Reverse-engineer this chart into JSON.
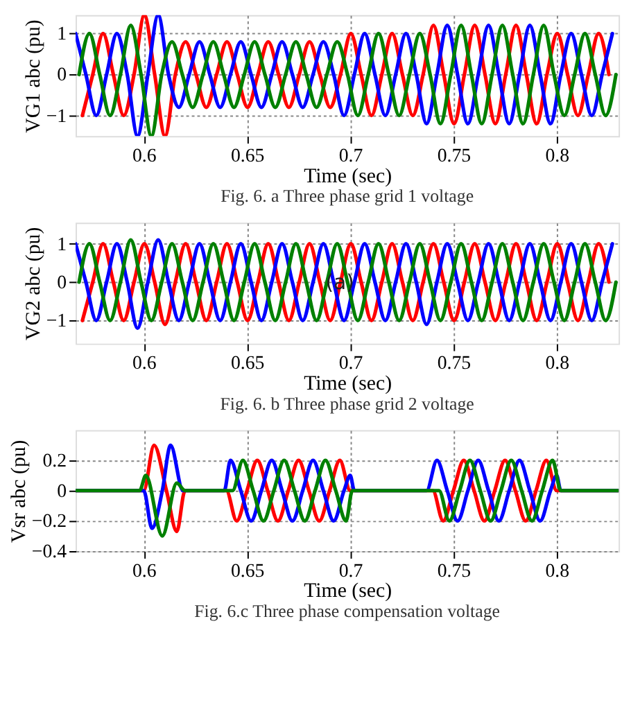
{
  "chart_data": [
    {
      "type": "line",
      "xlabel": "Time (sec)",
      "ylabel": "VG1 abc (pu)",
      "annotations": [
        "Fig. 6. a Three phase grid 1 voltage"
      ],
      "xlim": [
        0.567,
        0.83
      ],
      "ylim": [
        -1.5,
        1.45
      ],
      "xticks": [
        0.6,
        0.65,
        0.7,
        0.75,
        0.8
      ],
      "yticks": [
        -1,
        0,
        1
      ],
      "grid": true,
      "line_style": "solid",
      "series": [
        {
          "color": "#ff0000",
          "x": [
            0.5703,
            0.5753,
            0.5803,
            0.5853,
            0.5903,
            0.5953,
            0.6003,
            0.6053,
            0.6103,
            0.6153,
            0.6203,
            0.6253,
            0.6303,
            0.6353,
            0.6403,
            0.6453,
            0.6503,
            0.6553,
            0.6603,
            0.6653,
            0.6703,
            0.6753,
            0.6803,
            0.6853,
            0.6903,
            0.6953,
            0.7003,
            0.7053,
            0.7103,
            0.7153,
            0.7203,
            0.7253,
            0.7303,
            0.7353,
            0.7403,
            0.7453,
            0.7503,
            0.7553,
            0.7603,
            0.7653,
            0.7703,
            0.7753,
            0.7803,
            0.7853,
            0.7903,
            0.7953,
            0.8003,
            0.8053,
            0.8103,
            0.8153,
            0.8203,
            0.8253
          ],
          "values": [
            -1,
            0,
            1,
            0,
            -1,
            0,
            1.45,
            0,
            -1.5,
            0,
            0.8,
            0,
            -0.8,
            0,
            0.8,
            0,
            -0.8,
            0,
            0.8,
            0,
            -0.8,
            0,
            0.8,
            0,
            -0.8,
            0,
            1,
            0,
            -1,
            0,
            1,
            0,
            -1,
            0,
            1.2,
            0,
            -1.2,
            0,
            1.2,
            0,
            -1.2,
            0,
            1.2,
            0,
            -1.2,
            0,
            1,
            0,
            -1,
            0,
            1,
            0
          ]
        },
        {
          "color": "#0000ff",
          "x": [
            0.567,
            0.572,
            0.577,
            0.582,
            0.587,
            0.592,
            0.597,
            0.602,
            0.607,
            0.612,
            0.617,
            0.622,
            0.627,
            0.632,
            0.637,
            0.642,
            0.647,
            0.652,
            0.657,
            0.662,
            0.667,
            0.672,
            0.677,
            0.682,
            0.687,
            0.692,
            0.697,
            0.702,
            0.707,
            0.712,
            0.717,
            0.722,
            0.727,
            0.732,
            0.737,
            0.742,
            0.747,
            0.752,
            0.757,
            0.762,
            0.767,
            0.772,
            0.777,
            0.782,
            0.787,
            0.792,
            0.797,
            0.802,
            0.807,
            0.812,
            0.817,
            0.822,
            0.827
          ],
          "values": [
            1,
            0,
            -1,
            0,
            1,
            0,
            -1.5,
            0,
            1.45,
            0,
            -0.8,
            0,
            0.8,
            0,
            -0.8,
            0,
            0.8,
            0,
            -0.8,
            0,
            0.8,
            0,
            -0.8,
            0,
            0.8,
            0,
            -1,
            0,
            1,
            0,
            -1,
            0,
            1,
            0,
            -1.2,
            0,
            1.2,
            0,
            -1.2,
            0,
            1.2,
            0,
            -1.2,
            0,
            1.2,
            0,
            -1.2,
            0,
            1,
            0,
            -1,
            0,
            1
          ]
        },
        {
          "color": "#008000",
          "x": [
            0.5687,
            0.5737,
            0.5787,
            0.5837,
            0.5887,
            0.5937,
            0.5987,
            0.6037,
            0.6087,
            0.6137,
            0.6187,
            0.6237,
            0.6287,
            0.6337,
            0.6387,
            0.6437,
            0.6487,
            0.6537,
            0.6587,
            0.6637,
            0.6687,
            0.6737,
            0.6787,
            0.6837,
            0.6887,
            0.6937,
            0.6987,
            0.7037,
            0.7087,
            0.7137,
            0.7187,
            0.7237,
            0.7287,
            0.7337,
            0.7387,
            0.7437,
            0.7487,
            0.7537,
            0.7587,
            0.7637,
            0.7687,
            0.7737,
            0.7787,
            0.7837,
            0.7887,
            0.7937,
            0.7987,
            0.8037,
            0.8087,
            0.8137,
            0.8187,
            0.8237,
            0.8287
          ],
          "values": [
            0,
            1,
            0,
            -1,
            0,
            1.2,
            0,
            -1.5,
            0,
            0.8,
            0,
            -0.8,
            0,
            0.8,
            0,
            -0.8,
            0,
            0.8,
            0,
            -0.8,
            0,
            0.8,
            0,
            -0.8,
            0,
            0.8,
            0,
            -1,
            0,
            1,
            0,
            -1,
            0,
            1,
            0,
            -1.2,
            0,
            1.2,
            0,
            -1.2,
            0,
            1.2,
            0,
            -1.2,
            0,
            1.2,
            0,
            -1,
            0,
            1,
            0,
            -1,
            0
          ]
        }
      ]
    },
    {
      "type": "line",
      "xlabel": "Time (sec)",
      "ylabel": "VG2 abc (pu)",
      "annotations": [
        {
          "text": "(a)",
          "x": 0.695,
          "y": 0
        },
        "Fig. 6. b Three phase grid 2 voltage"
      ],
      "xlim": [
        0.567,
        0.83
      ],
      "ylim": [
        -1.6,
        1.55
      ],
      "xticks": [
        0.6,
        0.65,
        0.7,
        0.75,
        0.8
      ],
      "yticks": [
        -1,
        0,
        1
      ],
      "grid": true,
      "line_style": "solid",
      "series": [
        {
          "color": "#ff0000",
          "x": [
            0.5703,
            0.5753,
            0.5803,
            0.5853,
            0.5903,
            0.5953,
            0.6003,
            0.6053,
            0.6103,
            0.6153,
            0.6203,
            0.6253,
            0.6303,
            0.6353,
            0.6403,
            0.6453,
            0.6503,
            0.6553,
            0.6603,
            0.6653,
            0.6703,
            0.6753,
            0.6803,
            0.6853,
            0.6903,
            0.6953,
            0.7003,
            0.7053,
            0.7103,
            0.7153,
            0.7203,
            0.7253,
            0.7303,
            0.7353,
            0.7403,
            0.7453,
            0.7503,
            0.7553,
            0.7603,
            0.7653,
            0.7703,
            0.7753,
            0.7803,
            0.7853,
            0.7903,
            0.7953,
            0.8003,
            0.8053,
            0.8103,
            0.8153,
            0.8203,
            0.8253
          ],
          "values": [
            -1,
            0,
            1,
            0,
            -1,
            0,
            1,
            0,
            -1.1,
            0,
            1,
            0,
            -1,
            0,
            1,
            0,
            -1,
            0,
            1,
            0,
            -1,
            0,
            1,
            0,
            -1,
            0,
            1,
            0,
            -1,
            0,
            1,
            0,
            -1,
            0,
            1,
            0,
            -1,
            0,
            1,
            0,
            -1,
            0,
            1,
            0,
            -1,
            0,
            1,
            0,
            -1,
            0,
            1,
            0
          ]
        },
        {
          "color": "#0000ff",
          "x": [
            0.567,
            0.572,
            0.577,
            0.582,
            0.587,
            0.592,
            0.597,
            0.602,
            0.607,
            0.612,
            0.617,
            0.622,
            0.627,
            0.632,
            0.637,
            0.642,
            0.647,
            0.652,
            0.657,
            0.662,
            0.667,
            0.672,
            0.677,
            0.682,
            0.687,
            0.692,
            0.697,
            0.702,
            0.707,
            0.712,
            0.717,
            0.722,
            0.727,
            0.732,
            0.737,
            0.742,
            0.747,
            0.752,
            0.757,
            0.762,
            0.767,
            0.772,
            0.777,
            0.782,
            0.787,
            0.792,
            0.797,
            0.802,
            0.807,
            0.812,
            0.817,
            0.822,
            0.827
          ],
          "values": [
            1,
            0,
            -1,
            0,
            1,
            0,
            -1.2,
            0,
            1.1,
            0,
            -1,
            0,
            1,
            0,
            -1,
            0,
            1,
            0,
            -1,
            0,
            1,
            0,
            -1,
            0,
            1,
            0,
            -1,
            0,
            1,
            0,
            -1,
            0,
            1,
            0,
            -1.1,
            0,
            1,
            0,
            -1,
            0,
            1,
            0,
            -1,
            0,
            1,
            0,
            -1,
            0,
            1,
            0,
            -1,
            0,
            1
          ]
        },
        {
          "color": "#008000",
          "x": [
            0.5687,
            0.5737,
            0.5787,
            0.5837,
            0.5887,
            0.5937,
            0.5987,
            0.6037,
            0.6087,
            0.6137,
            0.6187,
            0.6237,
            0.6287,
            0.6337,
            0.6387,
            0.6437,
            0.6487,
            0.6537,
            0.6587,
            0.6637,
            0.6687,
            0.6737,
            0.6787,
            0.6837,
            0.6887,
            0.6937,
            0.6987,
            0.7037,
            0.7087,
            0.7137,
            0.7187,
            0.7237,
            0.7287,
            0.7337,
            0.7387,
            0.7437,
            0.7487,
            0.7537,
            0.7587,
            0.7637,
            0.7687,
            0.7737,
            0.7787,
            0.7837,
            0.7887,
            0.7937,
            0.7987,
            0.8037,
            0.8087,
            0.8137,
            0.8187,
            0.8237,
            0.8287
          ],
          "values": [
            0,
            1,
            0,
            -1,
            0,
            1.1,
            0,
            -1,
            0,
            1,
            0,
            -1,
            0,
            1,
            0,
            -1,
            0,
            1,
            0,
            -1,
            0,
            1,
            0,
            -1,
            0,
            1,
            0,
            -1,
            0,
            1,
            0,
            -1,
            0,
            1,
            0,
            -1,
            0,
            1,
            0,
            -1,
            0,
            1,
            0,
            -1,
            0,
            1,
            0,
            -1,
            0,
            1,
            0,
            -1,
            0
          ]
        }
      ]
    },
    {
      "type": "line",
      "xlabel": "Time (sec)",
      "ylabel": "Vsr abc (pu)",
      "annotations": [
        "Fig. 6.c Three phase compensation voltage"
      ],
      "xlim": [
        0.567,
        0.83
      ],
      "ylim": [
        -0.4,
        0.4
      ],
      "xticks": [
        0.6,
        0.65,
        0.7,
        0.75,
        0.8
      ],
      "yticks": [
        -0.4,
        -0.2,
        0,
        0.2
      ],
      "grid": true,
      "line_style": "solid",
      "series": [
        {
          "color": "#ff0000",
          "x": [
            0.567,
            0.6,
            0.605,
            0.611,
            0.616,
            0.62,
            0.64,
            0.645,
            0.65,
            0.655,
            0.66,
            0.665,
            0.67,
            0.675,
            0.68,
            0.685,
            0.69,
            0.695,
            0.7,
            0.74,
            0.745,
            0.75,
            0.755,
            0.76,
            0.765,
            0.77,
            0.775,
            0.78,
            0.785,
            0.79,
            0.795,
            0.8,
            0.83
          ],
          "values": [
            0,
            0,
            0.3,
            0,
            -0.27,
            0,
            0,
            -0.2,
            0,
            0.2,
            0,
            -0.2,
            0,
            0.2,
            0,
            -0.2,
            0,
            0.2,
            0,
            0,
            -0.2,
            0,
            0.2,
            0,
            -0.2,
            0,
            0.2,
            0,
            -0.2,
            0,
            0.2,
            0,
            0
          ]
        },
        {
          "color": "#0000ff",
          "x": [
            0.567,
            0.6,
            0.604,
            0.609,
            0.613,
            0.619,
            0.639,
            0.642,
            0.647,
            0.652,
            0.657,
            0.662,
            0.667,
            0.672,
            0.677,
            0.682,
            0.687,
            0.692,
            0.697,
            0.7,
            0.702,
            0.737,
            0.742,
            0.747,
            0.752,
            0.757,
            0.762,
            0.767,
            0.772,
            0.777,
            0.782,
            0.787,
            0.792,
            0.797,
            0.8,
            0.802,
            0.83
          ],
          "values": [
            0,
            0,
            -0.25,
            0,
            0.3,
            0,
            0,
            0.2,
            0,
            -0.2,
            0,
            0.2,
            0,
            -0.2,
            0,
            0.2,
            0,
            -0.2,
            0,
            0.1,
            0,
            0,
            0.2,
            0,
            -0.2,
            0,
            0.2,
            0,
            -0.2,
            0,
            0.2,
            0,
            -0.2,
            0,
            0.1,
            0,
            0
          ]
        },
        {
          "color": "#008000",
          "x": [
            0.567,
            0.598,
            0.601,
            0.609,
            0.616,
            0.62,
            0.643,
            0.648,
            0.653,
            0.658,
            0.663,
            0.668,
            0.673,
            0.678,
            0.683,
            0.688,
            0.693,
            0.698,
            0.701,
            0.743,
            0.748,
            0.753,
            0.758,
            0.763,
            0.768,
            0.773,
            0.778,
            0.783,
            0.788,
            0.793,
            0.798,
            0.802,
            0.83
          ],
          "values": [
            0,
            0,
            0.1,
            -0.3,
            0.05,
            0,
            0,
            0.2,
            0,
            -0.2,
            0,
            0.2,
            0,
            -0.2,
            0,
            0.2,
            0,
            -0.2,
            0,
            0,
            -0.2,
            0,
            0.2,
            0,
            -0.2,
            0,
            0.2,
            0,
            -0.2,
            0,
            0.2,
            0,
            0
          ]
        }
      ]
    }
  ]
}
